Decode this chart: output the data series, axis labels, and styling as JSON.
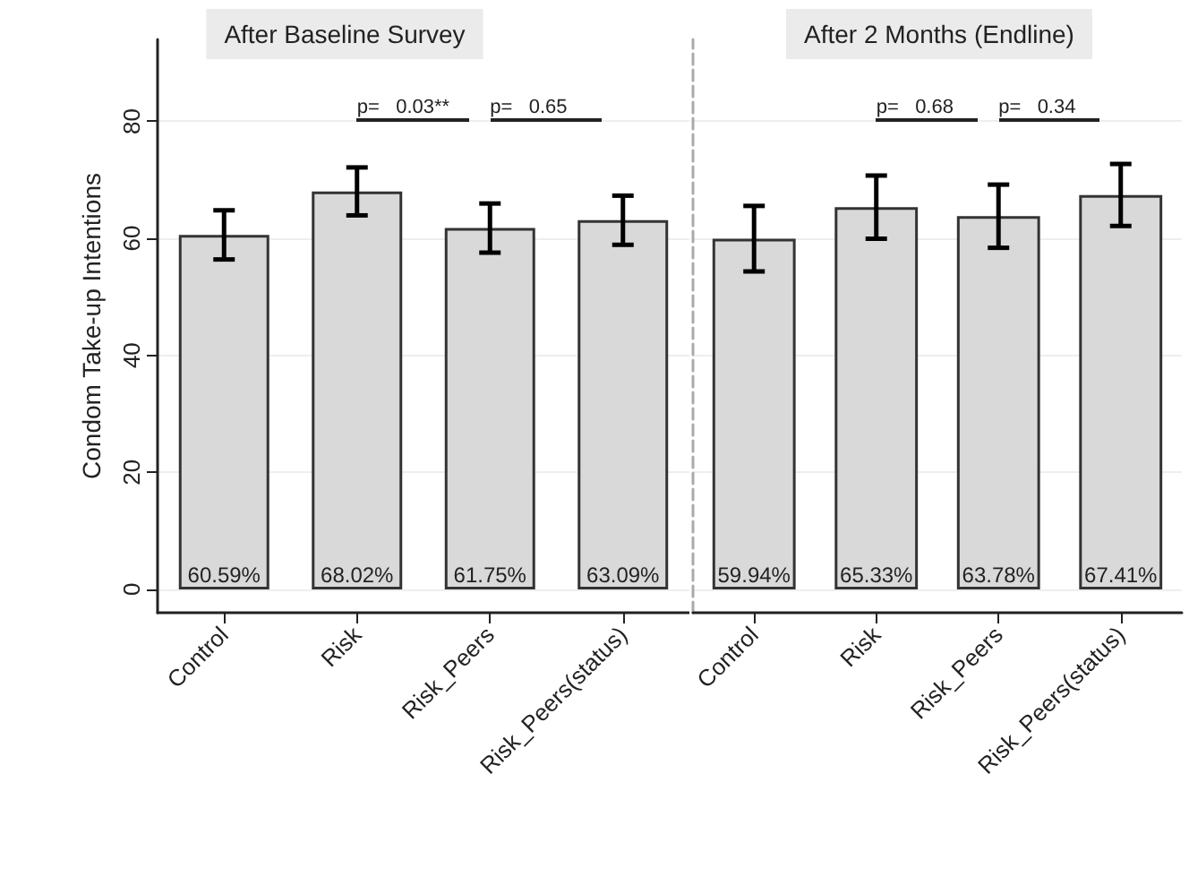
{
  "chart_data": [
    {
      "type": "bar",
      "title": "After Baseline Survey",
      "ylabel": "Condom Take-up Intentions",
      "categories": [
        "Control",
        "Risk",
        "Risk_Peers",
        "Risk_Peers(status)"
      ],
      "values": [
        60.59,
        68.02,
        61.75,
        63.09
      ],
      "color": "#d9d9d9",
      "errors": [
        4.2,
        4.1,
        4.2,
        4.2
      ],
      "value_labels": [
        "60.59%",
        "68.02%",
        "61.75%",
        "63.09%"
      ],
      "ylim": [
        -4,
        94
      ],
      "yticks": [
        0,
        20,
        40,
        60,
        80
      ],
      "grid": "y",
      "annotations": [
        "p=   0.03**",
        "p=   0.65"
      ]
    },
    {
      "type": "bar",
      "title": "After 2 Months (Endline)",
      "categories": [
        "Control",
        "Risk",
        "Risk_Peers",
        "Risk_Peers(status)"
      ],
      "values": [
        59.94,
        65.33,
        63.78,
        67.41
      ],
      "color": "#d9d9d9",
      "errors": [
        5.6,
        5.4,
        5.4,
        5.3
      ],
      "value_labels": [
        "59.94%",
        "65.33%",
        "63.78%",
        "67.41%"
      ],
      "ylim": [
        -4,
        94
      ],
      "yticks": [
        0,
        20,
        40,
        60,
        80
      ],
      "grid": "y",
      "tick_labels": "x",
      "annotations": [
        "p=   0.68",
        "p=   0.34"
      ]
    }
  ]
}
